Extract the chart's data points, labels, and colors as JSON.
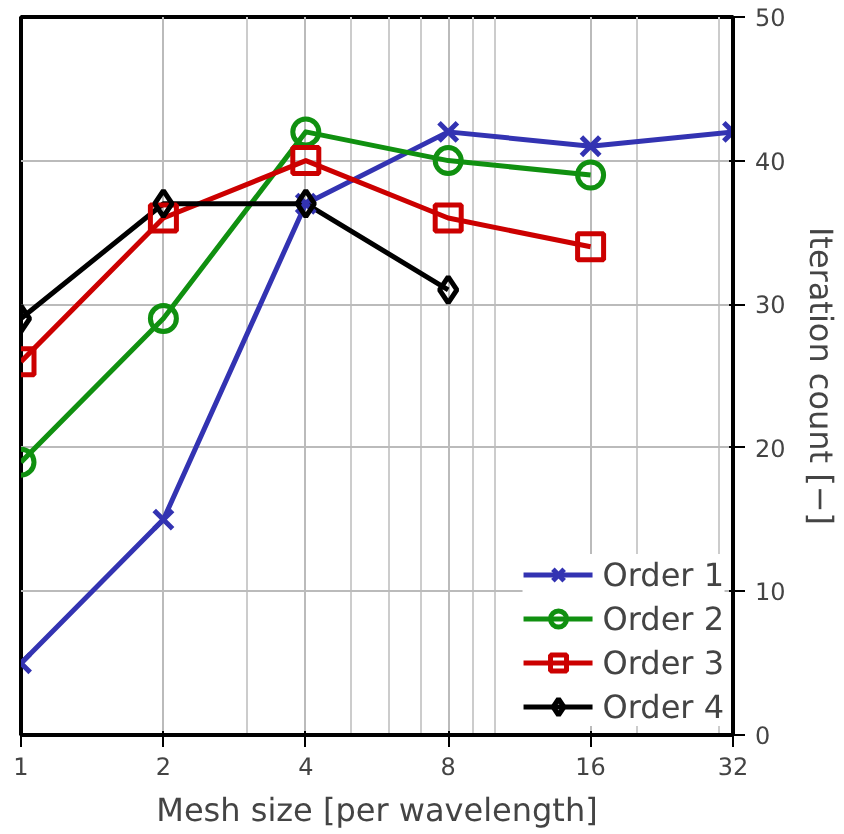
{
  "chart_data": {
    "type": "line",
    "xlabel": "Mesh size [per wavelength]",
    "ylabel": "Iteration count [−]",
    "x": [
      1,
      2,
      4,
      8,
      16,
      32
    ],
    "log": "x",
    "xlim": [
      1,
      32
    ],
    "xticks": [
      1,
      2,
      4,
      8,
      16,
      32
    ],
    "ylim": [
      0,
      50
    ],
    "yticks": [
      0,
      10,
      20,
      30,
      40,
      50
    ],
    "grid": true,
    "legend": "bottom right",
    "line_style": "solid",
    "series": [
      {
        "name": "Order 1",
        "color": "#3333b2",
        "marker": "cross",
        "values": [
          5,
          15,
          37,
          42,
          41,
          42
        ]
      },
      {
        "name": "Order 2",
        "color": "#109010",
        "marker": "circle",
        "values": [
          19,
          29,
          42,
          40,
          39,
          null
        ]
      },
      {
        "name": "Order 3",
        "color": "#cc0000",
        "marker": "square",
        "values": [
          26,
          36,
          40,
          36,
          34,
          null
        ]
      },
      {
        "name": "Order 4",
        "color": "#000000",
        "marker": "diamond",
        "values": [
          29,
          37,
          37,
          31,
          null,
          null
        ]
      }
    ]
  }
}
